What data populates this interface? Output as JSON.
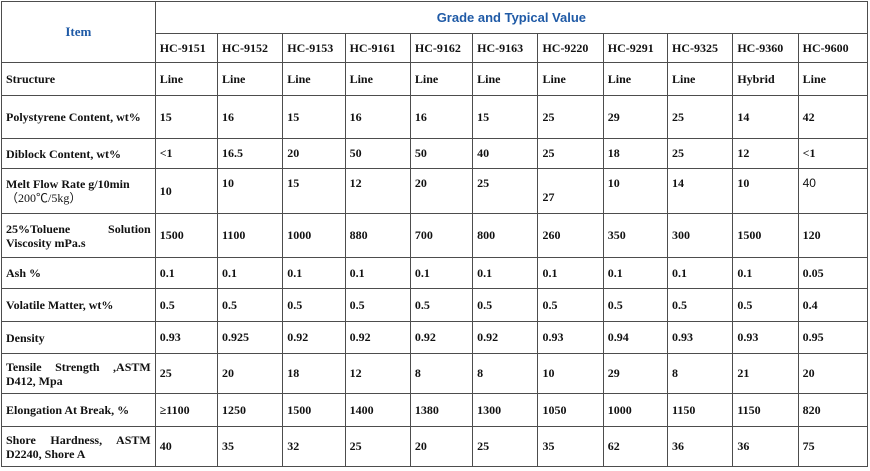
{
  "header": {
    "item": "Item",
    "grade_group": "Grade and Typical Value"
  },
  "grades": [
    "HC-9151",
    "HC-9152",
    "HC-9153",
    "HC-9161",
    "HC-9162",
    "HC-9163",
    "HC-9220",
    "HC-9291",
    "HC-9325",
    "HC-9360",
    "HC-9600"
  ],
  "rows": [
    {
      "label": "Structure",
      "values": [
        "Line",
        "Line",
        "Line",
        "Line",
        "Line",
        "Line",
        "Line",
        "Line",
        "Line",
        "Hybrid",
        "Line"
      ]
    },
    {
      "label": "Polystyrene Content, wt%",
      "values": [
        "15",
        "16",
        "15",
        "16",
        "16",
        "15",
        "25",
        "29",
        "25",
        "14",
        "42"
      ]
    },
    {
      "label": "Diblock Content, wt%",
      "values": [
        "<1",
        "16.5",
        "20",
        "50",
        "50",
        "40",
        "25",
        "18",
        "25",
        "12",
        "<1"
      ]
    },
    {
      "label": "Melt Flow Rate g/10min",
      "label2": "（200℃/5kg）",
      "values": [
        "10",
        "10",
        "15",
        "12",
        "20",
        "25",
        "27",
        "10",
        "14",
        "10",
        "40"
      ]
    },
    {
      "label": "25%Toluene Solution Viscosity mPa.s",
      "values": [
        "1500",
        "1100",
        "1000",
        "880",
        "700",
        "800",
        "260",
        "350",
        "300",
        "1500",
        "120"
      ]
    },
    {
      "label": "Ash %",
      "values": [
        "0.1",
        "0.1",
        "0.1",
        "0.1",
        "0.1",
        "0.1",
        "0.1",
        "0.1",
        "0.1",
        "0.1",
        "0.05"
      ]
    },
    {
      "label": "Volatile Matter, wt%",
      "values": [
        "0.5",
        "0.5",
        "0.5",
        "0.5",
        "0.5",
        "0.5",
        "0.5",
        "0.5",
        "0.5",
        "0.5",
        "0.4"
      ]
    },
    {
      "label": "Density",
      "values": [
        "0.93",
        "0.925",
        "0.92",
        "0.92",
        "0.92",
        "0.92",
        "0.93",
        "0.94",
        "0.93",
        "0.93",
        "0.95"
      ]
    },
    {
      "label": "Tensile Strength ,ASTM D412, Mpa",
      "values": [
        "25",
        "20",
        "18",
        "12",
        "8",
        "8",
        "10",
        "29",
        "8",
        "21",
        "20"
      ]
    },
    {
      "label": "Elongation At Break, %",
      "values": [
        "≥1100",
        "1250",
        "1500",
        "1400",
        "1380",
        "1300",
        "1050",
        "1000",
        "1150",
        "1150",
        "820"
      ]
    },
    {
      "label": "Shore Hardness, ASTM D2240, Shore A",
      "values": [
        "40",
        "35",
        "32",
        "25",
        "20",
        "25",
        "35",
        "62",
        "36",
        "36",
        "75"
      ]
    }
  ]
}
